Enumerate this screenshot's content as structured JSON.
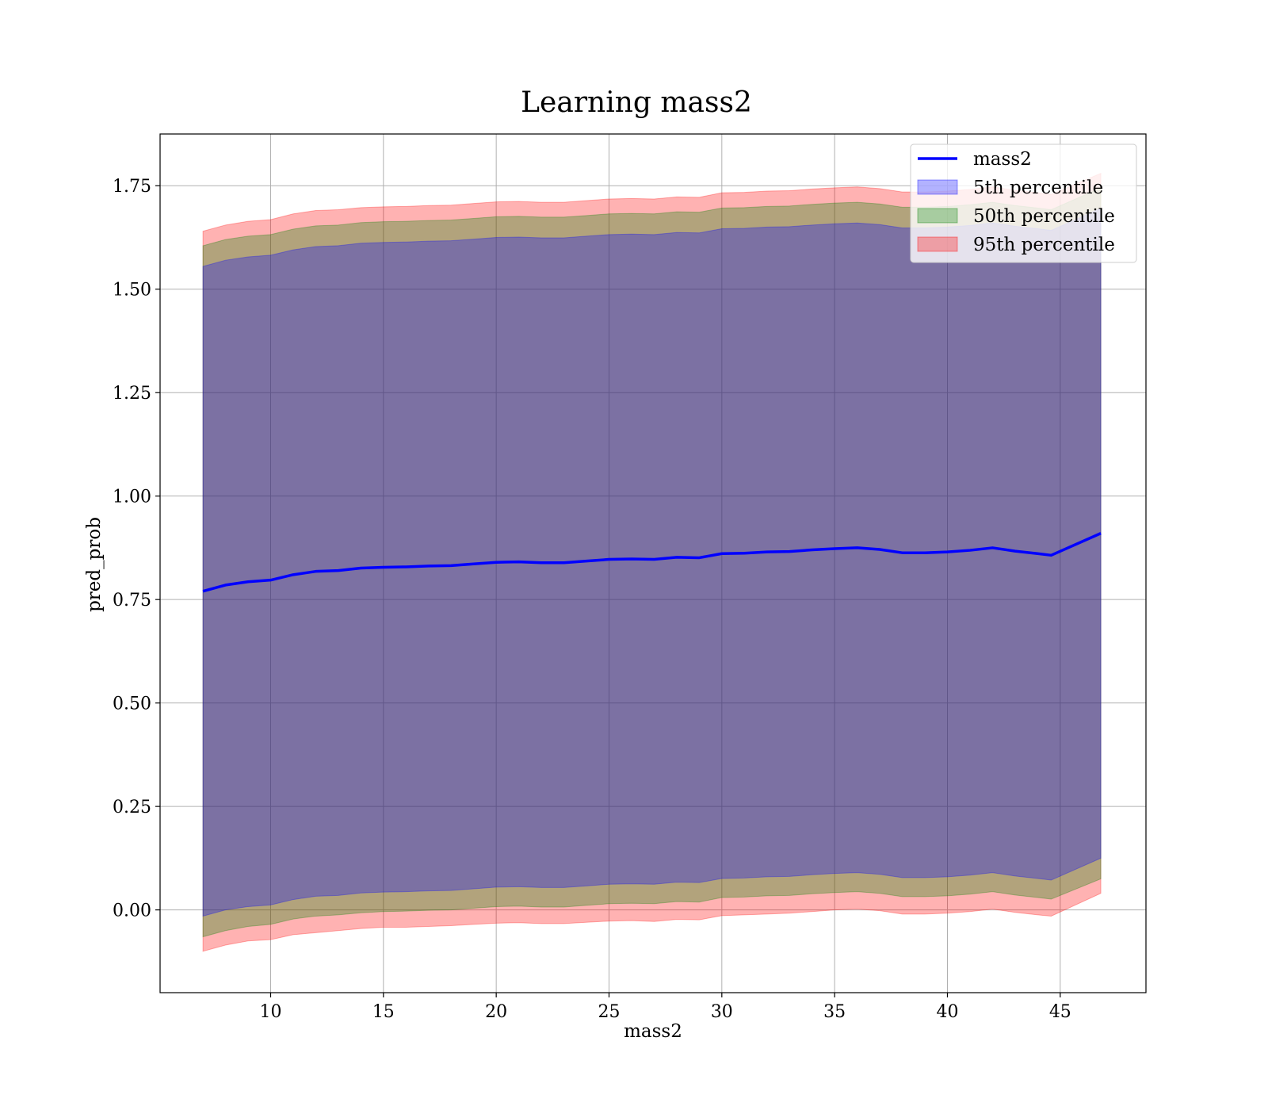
{
  "chart_data": {
    "type": "area",
    "title": "Learning mass2",
    "xlabel": "mass2",
    "ylabel": "pred_prob",
    "xlim": [
      5.1,
      48.8
    ],
    "ylim": [
      -0.2,
      1.875
    ],
    "x_ticks": [
      10,
      15,
      20,
      25,
      30,
      35,
      40,
      45
    ],
    "y_ticks": [
      0.0,
      0.25,
      0.5,
      0.75,
      1.0,
      1.25,
      1.5,
      1.75
    ],
    "x_tick_labels": [
      "10",
      "15",
      "20",
      "25",
      "30",
      "35",
      "40",
      "45"
    ],
    "y_tick_labels": [
      "0.00",
      "0.25",
      "0.50",
      "0.75",
      "1.00",
      "1.25",
      "1.50",
      "1.75"
    ],
    "grid": true,
    "legend_position": "top-right",
    "x": [
      7,
      8,
      9,
      10,
      11,
      12,
      13,
      14,
      15,
      16,
      17,
      18,
      19,
      20,
      21,
      22,
      23,
      24,
      25,
      26,
      27,
      28,
      29,
      30,
      31,
      32,
      33,
      34,
      35,
      36,
      37,
      38,
      39,
      40,
      41,
      42,
      43,
      44,
      44.6,
      46.8
    ],
    "line": {
      "name": "mass2",
      "color": "#0000ff",
      "values": [
        0.77,
        0.785,
        0.793,
        0.797,
        0.81,
        0.818,
        0.82,
        0.826,
        0.828,
        0.829,
        0.831,
        0.832,
        0.836,
        0.84,
        0.841,
        0.839,
        0.839,
        0.843,
        0.847,
        0.848,
        0.847,
        0.852,
        0.851,
        0.861,
        0.862,
        0.865,
        0.866,
        0.87,
        0.873,
        0.875,
        0.871,
        0.863,
        0.863,
        0.865,
        0.869,
        0.875,
        0.867,
        0.861,
        0.857,
        0.91
      ]
    },
    "bands": [
      {
        "name": "95th percentile",
        "color": "#ff0000",
        "opacity": 0.3,
        "lower": [
          -0.1,
          -0.085,
          -0.075,
          -0.072,
          -0.06,
          -0.055,
          -0.05,
          -0.045,
          -0.042,
          -0.042,
          -0.04,
          -0.038,
          -0.035,
          -0.032,
          -0.031,
          -0.033,
          -0.033,
          -0.03,
          -0.027,
          -0.026,
          -0.028,
          -0.023,
          -0.024,
          -0.014,
          -0.012,
          -0.01,
          -0.008,
          -0.004,
          0.0,
          0.002,
          -0.002,
          -0.01,
          -0.01,
          -0.008,
          -0.004,
          0.002,
          -0.006,
          -0.012,
          -0.015,
          0.04
        ],
        "upper": [
          1.64,
          1.655,
          1.664,
          1.668,
          1.682,
          1.69,
          1.692,
          1.697,
          1.699,
          1.7,
          1.702,
          1.703,
          1.707,
          1.711,
          1.712,
          1.71,
          1.71,
          1.714,
          1.718,
          1.719,
          1.718,
          1.723,
          1.722,
          1.733,
          1.734,
          1.737,
          1.738,
          1.742,
          1.745,
          1.747,
          1.743,
          1.735,
          1.735,
          1.737,
          1.741,
          1.747,
          1.739,
          1.733,
          1.729,
          1.78
        ]
      },
      {
        "name": "50th percentile",
        "color": "#008000",
        "opacity": 0.3,
        "lower": [
          -0.065,
          -0.05,
          -0.04,
          -0.035,
          -0.022,
          -0.015,
          -0.012,
          -0.007,
          -0.004,
          -0.003,
          -0.001,
          0.0,
          0.004,
          0.008,
          0.009,
          0.007,
          0.007,
          0.011,
          0.015,
          0.016,
          0.015,
          0.02,
          0.019,
          0.03,
          0.031,
          0.034,
          0.035,
          0.039,
          0.042,
          0.044,
          0.04,
          0.032,
          0.032,
          0.034,
          0.038,
          0.044,
          0.036,
          0.03,
          0.026,
          0.075
        ],
        "upper": [
          1.605,
          1.62,
          1.628,
          1.632,
          1.645,
          1.653,
          1.655,
          1.661,
          1.663,
          1.664,
          1.666,
          1.667,
          1.671,
          1.675,
          1.676,
          1.674,
          1.674,
          1.678,
          1.682,
          1.683,
          1.682,
          1.687,
          1.686,
          1.696,
          1.697,
          1.7,
          1.701,
          1.705,
          1.708,
          1.71,
          1.706,
          1.698,
          1.698,
          1.7,
          1.704,
          1.71,
          1.702,
          1.696,
          1.692,
          1.745
        ]
      },
      {
        "name": "5th percentile",
        "color": "#0000ff",
        "opacity": 0.3,
        "lower": [
          -0.015,
          0.0,
          0.008,
          0.012,
          0.025,
          0.033,
          0.035,
          0.041,
          0.043,
          0.044,
          0.046,
          0.047,
          0.051,
          0.055,
          0.056,
          0.054,
          0.054,
          0.058,
          0.062,
          0.063,
          0.062,
          0.067,
          0.066,
          0.076,
          0.077,
          0.08,
          0.081,
          0.085,
          0.088,
          0.09,
          0.086,
          0.078,
          0.078,
          0.08,
          0.084,
          0.09,
          0.082,
          0.076,
          0.072,
          0.125
        ],
        "upper": [
          1.555,
          1.57,
          1.578,
          1.582,
          1.595,
          1.603,
          1.605,
          1.611,
          1.613,
          1.614,
          1.616,
          1.617,
          1.621,
          1.625,
          1.626,
          1.624,
          1.624,
          1.628,
          1.632,
          1.633,
          1.632,
          1.637,
          1.636,
          1.646,
          1.647,
          1.65,
          1.651,
          1.655,
          1.658,
          1.66,
          1.656,
          1.648,
          1.648,
          1.65,
          1.654,
          1.66,
          1.652,
          1.646,
          1.642,
          1.695
        ]
      }
    ],
    "legend": [
      {
        "label": "mass2",
        "kind": "line",
        "color": "#0000ff"
      },
      {
        "label": "5th percentile",
        "kind": "patch",
        "color": "#0000ff"
      },
      {
        "label": "50th percentile",
        "kind": "patch",
        "color": "#008000"
      },
      {
        "label": "95th percentile",
        "kind": "patch",
        "color": "#ff0000"
      }
    ]
  }
}
